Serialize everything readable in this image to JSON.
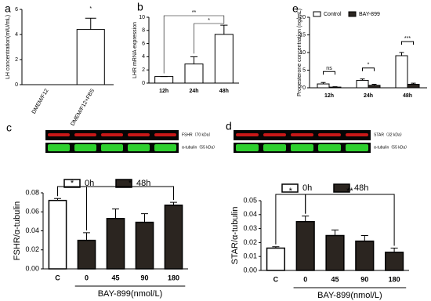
{
  "chart_data": [
    {
      "type": "bar",
      "label": "a",
      "ylabel": "LH concentration(mIU/mL)",
      "categories": [
        "DMEM/F12",
        "DMEM/F12+FBS"
      ],
      "values": [
        0,
        4.4
      ],
      "errors": [
        0,
        0.9
      ],
      "colors": [
        "#ffffff",
        "#ffffff"
      ],
      "ylim": [
        0,
        6
      ],
      "yticks": [
        0,
        2,
        4,
        6
      ],
      "annotations": [
        "*"
      ]
    },
    {
      "type": "bar",
      "label": "b",
      "ylabel": "LHR mRNA expression",
      "categories": [
        "12h",
        "24h",
        "48h"
      ],
      "values": [
        1,
        2.9,
        7.4
      ],
      "errors": [
        0,
        1.1,
        1.4
      ],
      "colors": [
        "#ffffff",
        "#ffffff",
        "#ffffff"
      ],
      "ylim": [
        0,
        10
      ],
      "yticks": [
        0,
        2,
        4,
        6,
        8,
        10
      ],
      "annotations": [
        "**",
        "*"
      ]
    },
    {
      "type": "grouped-bar",
      "label": "e",
      "ylabel": "Progesterone concentration (ng/mL)",
      "categories": [
        "12h",
        "24h",
        "48h"
      ],
      "series": [
        {
          "name": "Control",
          "color": "#ffffff",
          "values": [
            1.1,
            2.1,
            9.1
          ],
          "errors": [
            0.4,
            0.4,
            0.9
          ]
        },
        {
          "name": "BAY-899",
          "color": "#2b2520",
          "values": [
            0.2,
            0.7,
            1.0
          ],
          "errors": [
            0.1,
            0.3,
            0.3
          ]
        }
      ],
      "ylim": [
        0,
        20
      ],
      "yticks": [
        0,
        5,
        10,
        15,
        20
      ],
      "annotations": [
        "ns",
        "*",
        "***"
      ]
    },
    {
      "type": "bar",
      "label": "c",
      "blots": [
        "FSHR（70 kDa）",
        "α-tubulin（55 kDa）"
      ],
      "ylabel": "FSHR/α-tubulin",
      "xlabel": "BAY-899(nmol/L)",
      "categories": [
        "C",
        "0",
        "45",
        "90",
        "180"
      ],
      "values": [
        0.072,
        0.03,
        0.053,
        0.049,
        0.067
      ],
      "errors": [
        0.002,
        0.008,
        0.01,
        0.009,
        0.003
      ],
      "colors": [
        "#ffffff",
        "#2b2520",
        "#2b2520",
        "#2b2520",
        "#2b2520"
      ],
      "legend": [
        {
          "name": "0h",
          "color": "#ffffff"
        },
        {
          "name": "48h",
          "color": "#2b2520"
        }
      ],
      "ylim": [
        0,
        0.08
      ],
      "yticks": [
        {
          "value": 0,
          "label": "0.00"
        },
        {
          "value": 0.02,
          "label": "0.02"
        },
        {
          "value": 0.04,
          "label": "0.04"
        },
        {
          "value": 0.06,
          "label": "0.06"
        },
        {
          "value": 0.08,
          "label": "0.08"
        }
      ],
      "annotations": [
        "*",
        "*"
      ]
    },
    {
      "type": "bar",
      "label": "d",
      "blots": [
        "STAR（32 kDa）",
        "α-tubulin（55 kDa）"
      ],
      "ylabel": "STAR/α-tubulin",
      "xlabel": "BAY-899(nmol/L)",
      "categories": [
        "C",
        "0",
        "45",
        "90",
        "180"
      ],
      "values": [
        0.016,
        0.035,
        0.025,
        0.021,
        0.013
      ],
      "errors": [
        0.001,
        0.004,
        0.004,
        0.004,
        0.003
      ],
      "colors": [
        "#ffffff",
        "#2b2520",
        "#2b2520",
        "#2b2520",
        "#2b2520"
      ],
      "legend": [
        {
          "name": "0h",
          "color": "#ffffff"
        },
        {
          "name": "48h",
          "color": "#2b2520"
        }
      ],
      "ylim": [
        0,
        0.05
      ],
      "yticks": [
        {
          "value": 0,
          "label": "0.00"
        },
        {
          "value": 0.01,
          "label": "0.01"
        },
        {
          "value": 0.02,
          "label": "0.02"
        },
        {
          "value": 0.03,
          "label": "0.03"
        },
        {
          "value": 0.04,
          "label": "0.04"
        },
        {
          "value": 0.05,
          "label": "0.05"
        }
      ],
      "annotations": [
        "*",
        "**"
      ]
    }
  ]
}
